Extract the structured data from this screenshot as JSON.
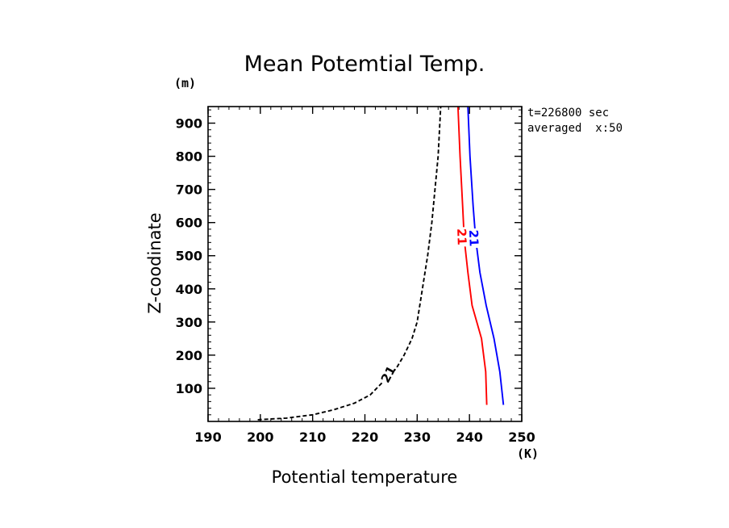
{
  "chart_data": {
    "type": "line",
    "title": "Mean Potemtial Temp.",
    "xlabel": "Potential temperature",
    "ylabel": "Z-coodinate",
    "x_unit": "(K)",
    "y_unit": "(m)",
    "xlim": [
      190,
      250
    ],
    "ylim": [
      0,
      950
    ],
    "x_ticks": [
      190,
      200,
      210,
      220,
      230,
      240,
      250
    ],
    "y_ticks": [
      100,
      200,
      300,
      400,
      500,
      600,
      700,
      800,
      900
    ],
    "x_minor_step": 2,
    "y_minor_step": 20,
    "annotations": [
      "t=226800 sec",
      "averaged  x:50"
    ],
    "series": [
      {
        "color": "#000000",
        "style": "dashed",
        "label": "21",
        "label_at": [
          224.5,
          142
        ],
        "x": [
          199.5,
          205,
          210,
          214,
          218,
          221,
          223.5,
          226,
          227.5,
          229,
          230,
          231,
          232,
          232.8,
          233.4,
          234,
          234.5
        ],
        "y": [
          5,
          10,
          20,
          35,
          55,
          80,
          120,
          160,
          200,
          250,
          300,
          400,
          500,
          600,
          700,
          800,
          950
        ]
      },
      {
        "color": "#ff0000",
        "style": "solid",
        "label": "21",
        "label_at": [
          238.5,
          557
        ],
        "x": [
          243.3,
          243.1,
          242.3,
          240.5,
          239.7,
          239,
          238.7,
          238.2,
          237.8
        ],
        "y": [
          50,
          150,
          250,
          350,
          450,
          550,
          650,
          800,
          950
        ]
      },
      {
        "color": "#0000ff",
        "style": "solid",
        "label": "21",
        "label_at": [
          240.8,
          553
        ],
        "x": [
          246.5,
          245.8,
          244.7,
          243.2,
          242,
          241.2,
          240.7,
          240.1,
          239.7
        ],
        "y": [
          50,
          150,
          250,
          350,
          450,
          550,
          650,
          800,
          950
        ]
      }
    ]
  }
}
